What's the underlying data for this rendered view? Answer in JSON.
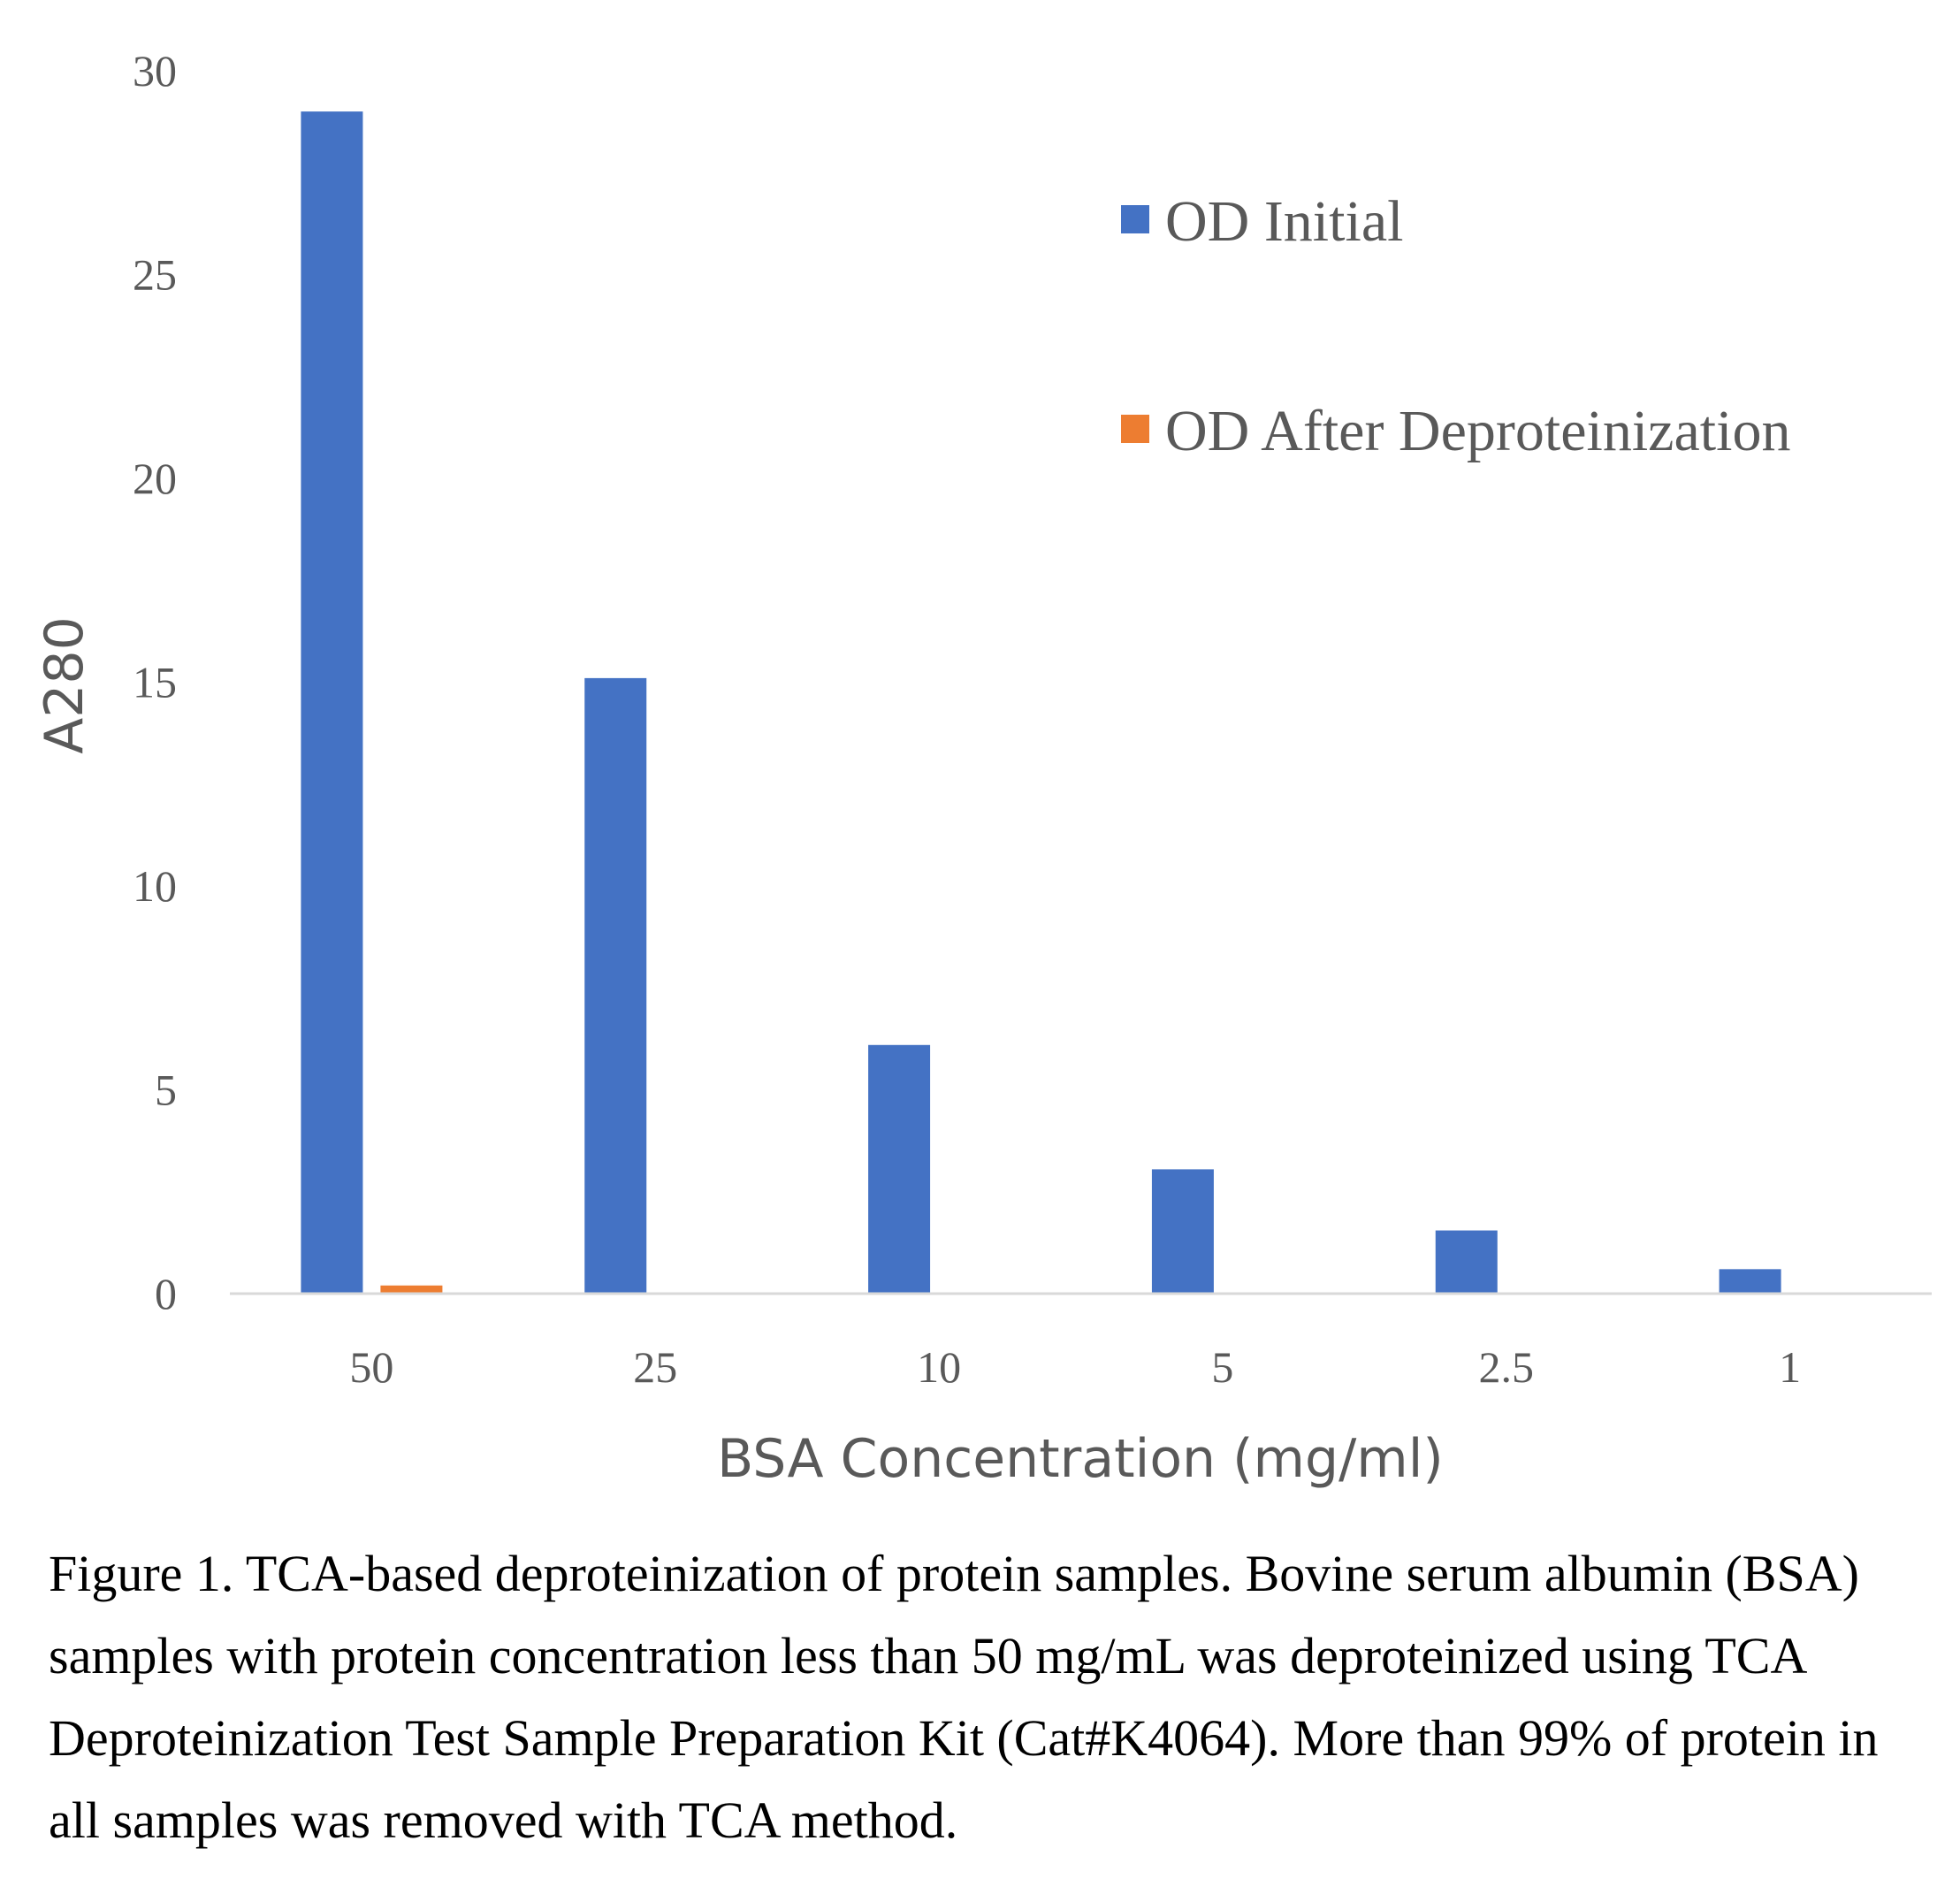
{
  "chart_data": {
    "type": "bar",
    "categories": [
      "50",
      "25",
      "10",
      "5",
      "2.5",
      "1"
    ],
    "series": [
      {
        "name": "OD Initial",
        "color": "#4472C4",
        "values": [
          29.0,
          15.1,
          6.1,
          3.05,
          1.55,
          0.6
        ]
      },
      {
        "name": "OD After Deproteinization",
        "color": "#ED7D31",
        "values": [
          0.2,
          0,
          0,
          0,
          0,
          0
        ]
      }
    ],
    "title": "",
    "xlabel": "BSA Concentration (mg/ml)",
    "ylabel": "A280",
    "ylim": [
      0,
      30
    ],
    "yticks": [
      "0",
      "5",
      "10",
      "15",
      "20",
      "25",
      "30"
    ],
    "grid": false,
    "legend_position": "top-right"
  },
  "caption": "Figure 1. TCA-based deproteinization of protein samples. Bovine serum albumin (BSA) samples with protein concentration less than 50 mg/mL was deproteinized using TCA Deproteinization Test Sample Preparation Kit (Cat#K4064). More than 99% of protein in all samples was removed with TCA method."
}
